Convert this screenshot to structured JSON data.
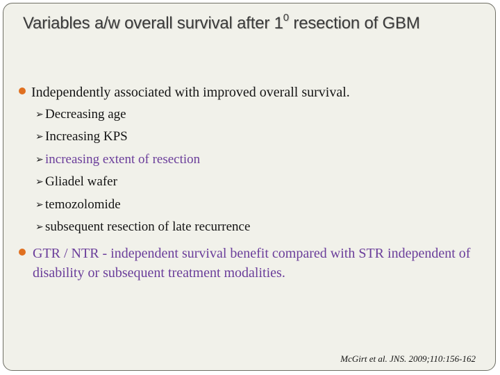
{
  "slide": {
    "title_main": "Variables a/w overall survival after 1",
    "title_sup": "0",
    "title_tail": " resection of GBM",
    "bullet1": "Independently associated with improved overall survival.",
    "subitems": [
      "Decreasing age",
      "Increasing KPS",
      "increasing extent of resection",
      "Gliadel wafer",
      "temozolomide",
      "subsequent resection of late recurrence"
    ],
    "bullet2": "GTR / NTR - independent survival benefit compared with STR independent of disability or subsequent treatment modalities.",
    "citation": "McGirt et al. JNS. 2009;110:156-162"
  },
  "colors": {
    "background": "#f1f1ea",
    "bullet_dot": "#e07020",
    "body_text": "#141414",
    "highlight_text": "#6a3d9a",
    "title_text": "#3a3a3a"
  },
  "icons": {
    "bullet": "orange-circle-bullet",
    "sub_bullet": "arrowhead-bullet"
  }
}
